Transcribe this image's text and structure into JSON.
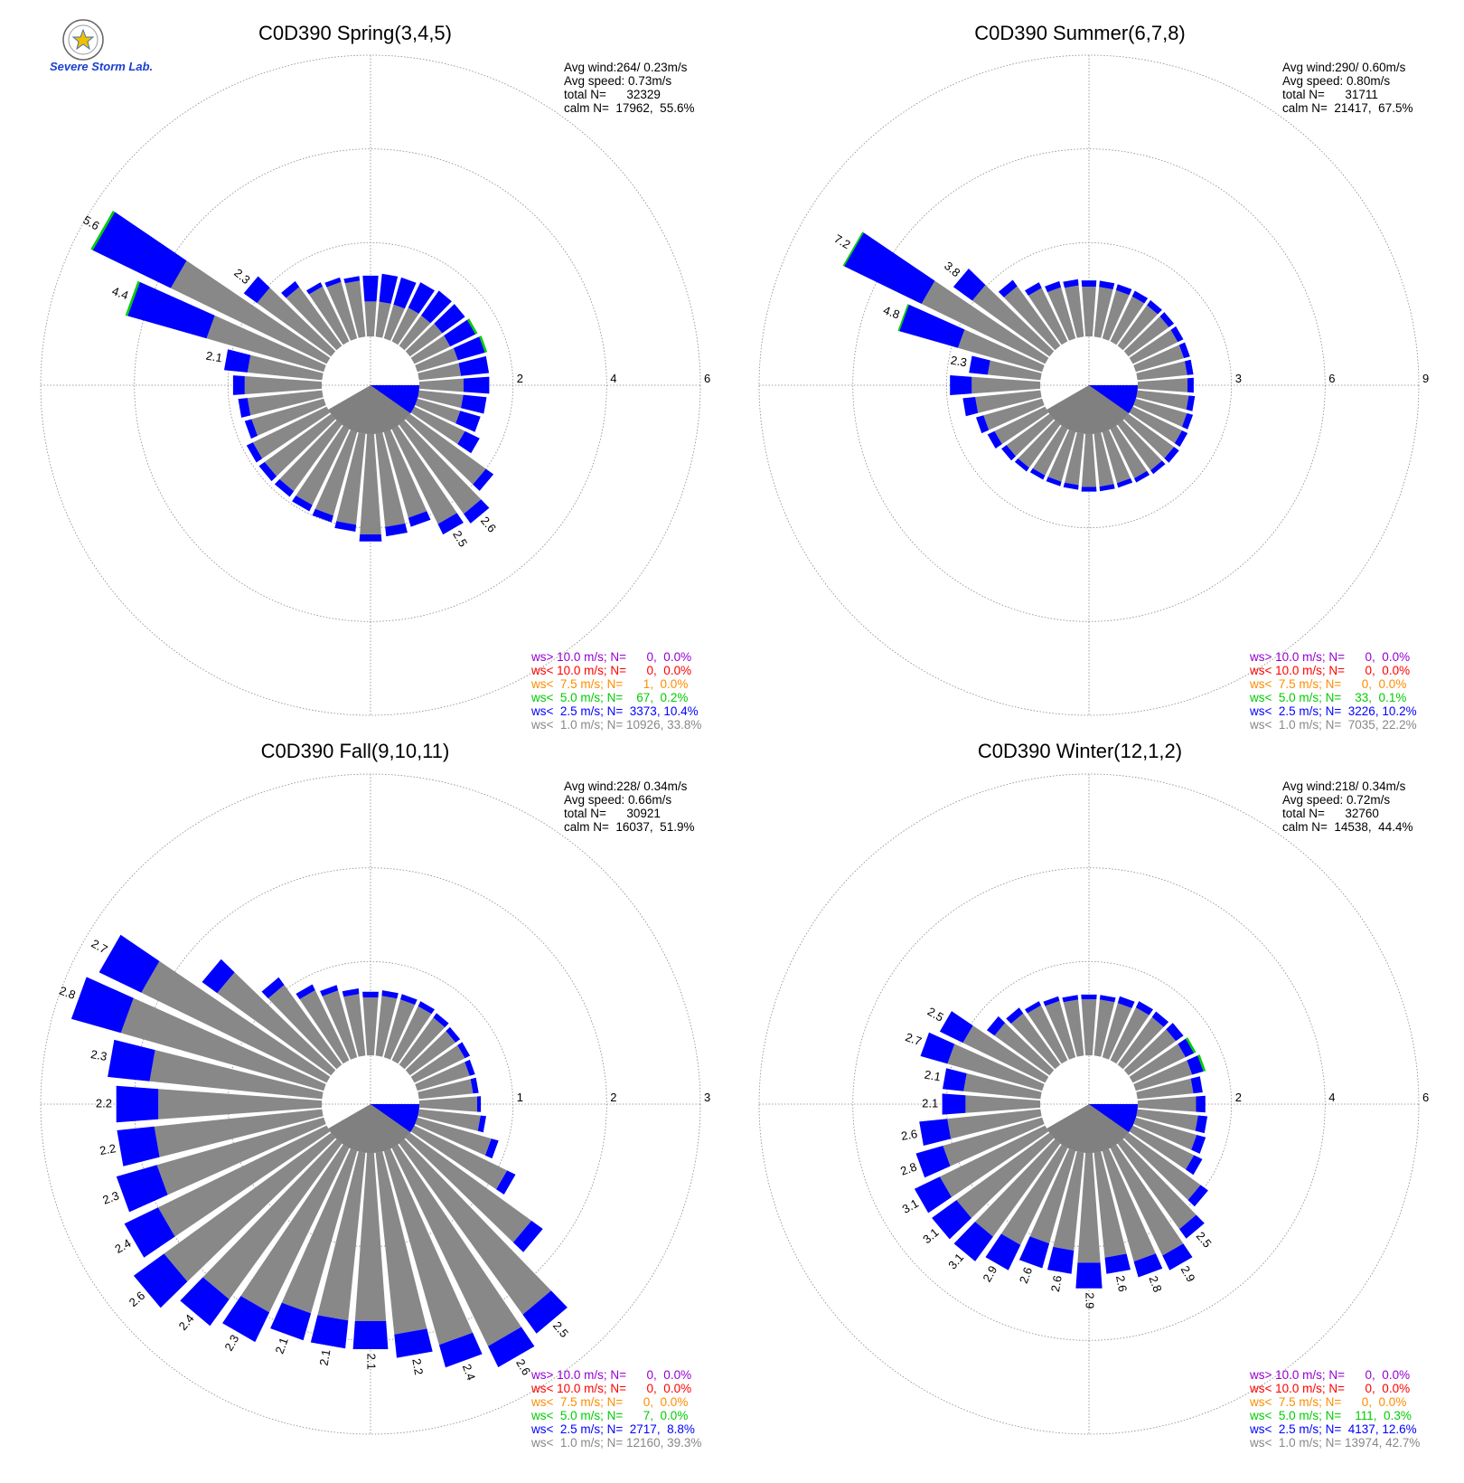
{
  "logo": {
    "text": "Severe Storm Lab."
  },
  "colors": {
    "calm_fill": "#808080",
    "grid": "#888888",
    "lt1": "#888888",
    "lt2_5": "#0000ff",
    "lt5": "#00cc00",
    "lt7_5": "#ff8c00",
    "lt10": "#ff0000",
    "gt10": "#9400d3"
  },
  "chart_data": [
    {
      "type": "polar-bar",
      "title": "C0D390 Spring(3,4,5)",
      "stats": [
        "Avg wind:264/ 0.23m/s",
        "Avg speed: 0.73m/s",
        "total N=      32329",
        "calm N=  17962,  55.6%"
      ],
      "rmax": 6,
      "rticks": [
        2,
        4,
        6
      ],
      "legend": [
        {
          "text": "ws> 10.0 m/s; N=      0,  0.0%",
          "color": "gt10"
        },
        {
          "text": "ws< 10.0 m/s; N=      0,  0.0%",
          "color": "lt10"
        },
        {
          "text": "ws<  7.5 m/s; N=      1,  0.0%",
          "color": "lt7_5"
        },
        {
          "text": "ws<  5.0 m/s; N=    67,  0.2%",
          "color": "lt5"
        },
        {
          "text": "ws<  2.5 m/s; N=  3373, 10.4%",
          "color": "lt2_5"
        },
        {
          "text": "ws<  1.0 m/s; N= 10926, 33.8%",
          "color": "lt1"
        }
      ],
      "directions": [
        {
          "d": 0,
          "v": 1.3,
          "b": 0.75,
          "g": 0
        },
        {
          "d": 10,
          "v": 1.35,
          "b": 0.75,
          "g": 0
        },
        {
          "d": 20,
          "v": 1.35,
          "b": 0.75,
          "g": 0
        },
        {
          "d": 30,
          "v": 1.4,
          "b": 0.8,
          "g": 0
        },
        {
          "d": 40,
          "v": 1.45,
          "b": 0.8,
          "g": 0
        },
        {
          "d": 50,
          "v": 1.45,
          "b": 0.85,
          "g": 0
        },
        {
          "d": 60,
          "v": 1.5,
          "b": 0.85,
          "g": 0.05
        },
        {
          "d": 70,
          "v": 1.55,
          "b": 0.9,
          "g": 0.05
        },
        {
          "d": 80,
          "v": 1.5,
          "b": 0.9,
          "g": 0
        },
        {
          "d": 90,
          "v": 1.5,
          "b": 0.95,
          "g": 0
        },
        {
          "d": 100,
          "v": 1.45,
          "b": 0.95,
          "g": 0
        },
        {
          "d": 110,
          "v": 1.4,
          "b": 0.95,
          "g": 0
        },
        {
          "d": 120,
          "v": 1.55,
          "b": 1.2,
          "g": 0
        },
        {
          "d": 130,
          "v": 2.2,
          "b": 2.0,
          "g": 0
        },
        {
          "d": 140,
          "v": 2.6,
          "b": 2.35,
          "g": 0,
          "label": "2.6"
        },
        {
          "d": 150,
          "v": 2.5,
          "b": 2.25,
          "g": 0,
          "label": "2.5"
        },
        {
          "d": 160,
          "v": 2.1,
          "b": 1.9,
          "g": 0
        },
        {
          "d": 170,
          "v": 2.2,
          "b": 2.0,
          "g": 0
        },
        {
          "d": 180,
          "v": 2.3,
          "b": 2.15,
          "g": 0
        },
        {
          "d": 190,
          "v": 2.1,
          "b": 1.95,
          "g": 0
        },
        {
          "d": 200,
          "v": 2.0,
          "b": 1.85,
          "g": 0
        },
        {
          "d": 210,
          "v": 1.95,
          "b": 1.8,
          "g": 0
        },
        {
          "d": 220,
          "v": 1.9,
          "b": 1.75,
          "g": 0
        },
        {
          "d": 230,
          "v": 1.9,
          "b": 1.75,
          "g": 0
        },
        {
          "d": 240,
          "v": 1.9,
          "b": 1.75,
          "g": 0
        },
        {
          "d": 250,
          "v": 1.75,
          "b": 1.6,
          "g": 0
        },
        {
          "d": 260,
          "v": 1.8,
          "b": 1.6,
          "g": 0
        },
        {
          "d": 270,
          "v": 1.9,
          "b": 1.65,
          "g": 0
        },
        {
          "d": 280,
          "v": 2.1,
          "b": 1.6,
          "g": 0,
          "label": "2.1"
        },
        {
          "d": 290,
          "v": 4.4,
          "b": 2.6,
          "g": 0.05,
          "label": "4.4"
        },
        {
          "d": 300,
          "v": 5.6,
          "b": 3.7,
          "g": 0.05,
          "label": "5.6"
        },
        {
          "d": 310,
          "v": 2.3,
          "b": 1.95,
          "g": 0,
          "label": "2.3"
        },
        {
          "d": 320,
          "v": 1.7,
          "b": 1.55,
          "g": 0
        },
        {
          "d": 330,
          "v": 1.4,
          "b": 1.3,
          "g": 0
        },
        {
          "d": 340,
          "v": 1.35,
          "b": 1.25,
          "g": 0
        },
        {
          "d": 350,
          "v": 1.3,
          "b": 1.2,
          "g": 0
        }
      ]
    },
    {
      "type": "polar-bar",
      "title": "C0D390 Summer(6,7,8)",
      "stats": [
        "Avg wind:290/ 0.60m/s",
        "Avg speed: 0.80m/s",
        "total N=      31711",
        "calm N=  21417,  67.5%"
      ],
      "rmax": 9,
      "rticks": [
        3,
        6,
        9
      ],
      "legend": [
        {
          "text": "ws> 10.0 m/s; N=      0,  0.0%",
          "color": "gt10"
        },
        {
          "text": "ws< 10.0 m/s; N=      0,  0.0%",
          "color": "lt10"
        },
        {
          "text": "ws<  7.5 m/s; N=      0,  0.0%",
          "color": "lt7_5"
        },
        {
          "text": "ws<  5.0 m/s; N=    33,  0.1%",
          "color": "lt5"
        },
        {
          "text": "ws<  2.5 m/s; N=  3226, 10.2%",
          "color": "lt2_5"
        },
        {
          "text": "ws<  1.0 m/s; N=  7035, 22.2%",
          "color": "lt1"
        }
      ],
      "directions": [
        {
          "d": 0,
          "v": 1.8,
          "b": 1.6,
          "g": 0
        },
        {
          "d": 10,
          "v": 1.8,
          "b": 1.6,
          "g": 0
        },
        {
          "d": 20,
          "v": 1.8,
          "b": 1.6,
          "g": 0
        },
        {
          "d": 30,
          "v": 1.8,
          "b": 1.6,
          "g": 0
        },
        {
          "d": 40,
          "v": 1.8,
          "b": 1.6,
          "g": 0
        },
        {
          "d": 50,
          "v": 1.8,
          "b": 1.6,
          "g": 0
        },
        {
          "d": 60,
          "v": 1.8,
          "b": 1.6,
          "g": 0
        },
        {
          "d": 70,
          "v": 1.8,
          "b": 1.6,
          "g": 0
        },
        {
          "d": 80,
          "v": 1.8,
          "b": 1.6,
          "g": 0
        },
        {
          "d": 90,
          "v": 1.8,
          "b": 1.6,
          "g": 0
        },
        {
          "d": 100,
          "v": 1.85,
          "b": 1.65,
          "g": 0
        },
        {
          "d": 110,
          "v": 1.9,
          "b": 1.7,
          "g": 0
        },
        {
          "d": 120,
          "v": 1.95,
          "b": 1.75,
          "g": 0
        },
        {
          "d": 130,
          "v": 2.0,
          "b": 1.8,
          "g": 0
        },
        {
          "d": 140,
          "v": 1.95,
          "b": 1.8,
          "g": 0
        },
        {
          "d": 150,
          "v": 1.9,
          "b": 1.75,
          "g": 0
        },
        {
          "d": 160,
          "v": 1.85,
          "b": 1.7,
          "g": 0
        },
        {
          "d": 170,
          "v": 1.85,
          "b": 1.7,
          "g": 0
        },
        {
          "d": 180,
          "v": 1.85,
          "b": 1.7,
          "g": 0
        },
        {
          "d": 190,
          "v": 1.8,
          "b": 1.65,
          "g": 0
        },
        {
          "d": 200,
          "v": 1.8,
          "b": 1.65,
          "g": 0
        },
        {
          "d": 210,
          "v": 1.8,
          "b": 1.65,
          "g": 0
        },
        {
          "d": 220,
          "v": 1.85,
          "b": 1.7,
          "g": 0
        },
        {
          "d": 230,
          "v": 1.9,
          "b": 1.7,
          "g": 0
        },
        {
          "d": 240,
          "v": 2.05,
          "b": 1.8,
          "g": 0
        },
        {
          "d": 250,
          "v": 2.2,
          "b": 1.95,
          "g": 0
        },
        {
          "d": 260,
          "v": 2.5,
          "b": 2.1,
          "g": 0
        },
        {
          "d": 270,
          "v": 2.9,
          "b": 2.2,
          "g": 0
        },
        {
          "d": 280,
          "v": 2.3,
          "b": 1.7,
          "g": 0,
          "label": "2.3"
        },
        {
          "d": 290,
          "v": 4.8,
          "b": 2.8,
          "g": 0.05,
          "label": "4.8"
        },
        {
          "d": 300,
          "v": 7.2,
          "b": 4.4,
          "g": 0.05,
          "label": "7.2"
        },
        {
          "d": 310,
          "v": 3.8,
          "b": 3.05,
          "g": 0,
          "label": "3.8"
        },
        {
          "d": 320,
          "v": 2.6,
          "b": 2.35,
          "g": 0
        },
        {
          "d": 330,
          "v": 2.1,
          "b": 1.9,
          "g": 0
        },
        {
          "d": 340,
          "v": 1.9,
          "b": 1.7,
          "g": 0
        },
        {
          "d": 350,
          "v": 1.85,
          "b": 1.65,
          "g": 0
        }
      ]
    },
    {
      "type": "polar-bar",
      "title": "C0D390 Fall(9,10,11)",
      "stats": [
        "Avg wind:228/ 0.34m/s",
        "Avg speed: 0.66m/s",
        "total N=      30921",
        "calm N=  16037,  51.9%"
      ],
      "rmax": 3,
      "rticks": [
        1,
        2,
        3
      ],
      "legend": [
        {
          "text": "ws> 10.0 m/s; N=      0,  0.0%",
          "color": "gt10"
        },
        {
          "text": "ws< 10.0 m/s; N=      0,  0.0%",
          "color": "lt10"
        },
        {
          "text": "ws<  7.5 m/s; N=      0,  0.0%",
          "color": "lt7_5"
        },
        {
          "text": "ws<  5.0 m/s; N=      7,  0.0%",
          "color": "lt5"
        },
        {
          "text": "ws<  2.5 m/s; N=  2717,  8.8%",
          "color": "lt2_5"
        },
        {
          "text": "ws<  1.0 m/s; N= 12160, 39.3%",
          "color": "lt1"
        }
      ],
      "directions": [
        {
          "d": 0,
          "v": 0.68,
          "b": 0.62,
          "g": 0
        },
        {
          "d": 10,
          "v": 0.7,
          "b": 0.64,
          "g": 0
        },
        {
          "d": 20,
          "v": 0.7,
          "b": 0.64,
          "g": 0
        },
        {
          "d": 30,
          "v": 0.7,
          "b": 0.64,
          "g": 0
        },
        {
          "d": 40,
          "v": 0.68,
          "b": 0.62,
          "g": 0
        },
        {
          "d": 50,
          "v": 0.66,
          "b": 0.6,
          "g": 0
        },
        {
          "d": 60,
          "v": 0.66,
          "b": 0.6,
          "g": 0
        },
        {
          "d": 70,
          "v": 0.64,
          "b": 0.58,
          "g": 0
        },
        {
          "d": 80,
          "v": 0.64,
          "b": 0.58,
          "g": 0
        },
        {
          "d": 90,
          "v": 0.66,
          "b": 0.62,
          "g": 0
        },
        {
          "d": 100,
          "v": 0.72,
          "b": 0.66,
          "g": 0
        },
        {
          "d": 110,
          "v": 0.9,
          "b": 0.82,
          "g": 0
        },
        {
          "d": 120,
          "v": 1.2,
          "b": 1.1,
          "g": 0
        },
        {
          "d": 130,
          "v": 1.75,
          "b": 1.6,
          "g": 0
        },
        {
          "d": 140,
          "v": 2.5,
          "b": 2.25,
          "g": 0,
          "label": "2.5"
        },
        {
          "d": 150,
          "v": 2.6,
          "b": 2.35,
          "g": 0,
          "label": "2.6"
        },
        {
          "d": 160,
          "v": 2.4,
          "b": 2.15,
          "g": 0,
          "label": "2.4"
        },
        {
          "d": 170,
          "v": 2.2,
          "b": 1.95,
          "g": 0,
          "label": "2.2"
        },
        {
          "d": 180,
          "v": 2.1,
          "b": 1.8,
          "g": 0,
          "label": "2.1"
        },
        {
          "d": 190,
          "v": 2.1,
          "b": 1.8,
          "g": 0,
          "label": "2.1"
        },
        {
          "d": 200,
          "v": 2.1,
          "b": 1.8,
          "g": 0,
          "label": "2.1"
        },
        {
          "d": 210,
          "v": 2.3,
          "b": 1.95,
          "g": 0,
          "label": "2.3"
        },
        {
          "d": 220,
          "v": 2.4,
          "b": 2.05,
          "g": 0,
          "label": "2.4"
        },
        {
          "d": 230,
          "v": 2.6,
          "b": 2.2,
          "g": 0,
          "label": "2.6"
        },
        {
          "d": 240,
          "v": 2.4,
          "b": 2.0,
          "g": 0,
          "label": "2.4"
        },
        {
          "d": 250,
          "v": 2.3,
          "b": 1.85,
          "g": 0,
          "label": "2.3"
        },
        {
          "d": 260,
          "v": 2.2,
          "b": 1.8,
          "g": 0,
          "label": "2.2"
        },
        {
          "d": 270,
          "v": 2.2,
          "b": 1.75,
          "g": 0,
          "label": "2.2"
        },
        {
          "d": 280,
          "v": 2.3,
          "b": 1.85,
          "g": 0,
          "label": "2.3"
        },
        {
          "d": 290,
          "v": 2.8,
          "b": 2.25,
          "g": 0,
          "label": "2.8"
        },
        {
          "d": 300,
          "v": 2.7,
          "b": 2.2,
          "g": 0,
          "label": "2.7"
        },
        {
          "d": 310,
          "v": 1.7,
          "b": 1.5,
          "g": 0
        },
        {
          "d": 320,
          "v": 1.15,
          "b": 1.05,
          "g": 0
        },
        {
          "d": 330,
          "v": 0.9,
          "b": 0.83,
          "g": 0
        },
        {
          "d": 340,
          "v": 0.8,
          "b": 0.74,
          "g": 0
        },
        {
          "d": 350,
          "v": 0.72,
          "b": 0.66,
          "g": 0
        }
      ]
    },
    {
      "type": "polar-bar",
      "title": "C0D390 Winter(12,1,2)",
      "stats": [
        "Avg wind:218/ 0.34m/s",
        "Avg speed: 0.72m/s",
        "total N=      32760",
        "calm N=  14538,  44.4%"
      ],
      "rmax": 6,
      "rticks": [
        2,
        4,
        6
      ],
      "legend": [
        {
          "text": "ws> 10.0 m/s; N=      0,  0.0%",
          "color": "gt10"
        },
        {
          "text": "ws< 10.0 m/s; N=      0,  0.0%",
          "color": "lt10"
        },
        {
          "text": "ws<  7.5 m/s; N=      0,  0.0%",
          "color": "lt7_5"
        },
        {
          "text": "ws<  5.0 m/s; N=    111,  0.3%",
          "color": "lt5"
        },
        {
          "text": "ws<  2.5 m/s; N=  4137, 12.6%",
          "color": "lt2_5"
        },
        {
          "text": "ws<  1.0 m/s; N= 13974, 42.7%",
          "color": "lt1"
        }
      ],
      "directions": [
        {
          "d": 0,
          "v": 1.3,
          "b": 1.2,
          "g": 0
        },
        {
          "d": 10,
          "v": 1.3,
          "b": 1.2,
          "g": 0
        },
        {
          "d": 20,
          "v": 1.35,
          "b": 1.2,
          "g": 0
        },
        {
          "d": 30,
          "v": 1.4,
          "b": 1.25,
          "g": 0
        },
        {
          "d": 40,
          "v": 1.4,
          "b": 1.25,
          "g": 0
        },
        {
          "d": 50,
          "v": 1.45,
          "b": 1.25,
          "g": 0
        },
        {
          "d": 60,
          "v": 1.5,
          "b": 1.25,
          "g": 0.05
        },
        {
          "d": 70,
          "v": 1.55,
          "b": 1.25,
          "g": 0.05
        },
        {
          "d": 80,
          "v": 1.4,
          "b": 1.2,
          "g": 0
        },
        {
          "d": 90,
          "v": 1.45,
          "b": 1.25,
          "g": 0
        },
        {
          "d": 100,
          "v": 1.5,
          "b": 1.3,
          "g": 0
        },
        {
          "d": 110,
          "v": 1.55,
          "b": 1.35,
          "g": 0
        },
        {
          "d": 120,
          "v": 1.65,
          "b": 1.45,
          "g": 0
        },
        {
          "d": 130,
          "v": 2.1,
          "b": 1.9,
          "g": 0
        },
        {
          "d": 140,
          "v": 2.5,
          "b": 2.25,
          "g": 0,
          "label": "2.5"
        },
        {
          "d": 150,
          "v": 2.9,
          "b": 2.55,
          "g": 0,
          "label": "2.9"
        },
        {
          "d": 160,
          "v": 2.8,
          "b": 2.45,
          "g": 0,
          "label": "2.8"
        },
        {
          "d": 170,
          "v": 2.6,
          "b": 2.25,
          "g": 0,
          "label": "2.6"
        },
        {
          "d": 180,
          "v": 2.9,
          "b": 2.35,
          "g": 0,
          "label": "2.9"
        },
        {
          "d": 190,
          "v": 2.6,
          "b": 2.1,
          "g": 0,
          "label": "2.6"
        },
        {
          "d": 200,
          "v": 2.6,
          "b": 2.05,
          "g": 0,
          "label": "2.6"
        },
        {
          "d": 210,
          "v": 2.9,
          "b": 2.3,
          "g": 0,
          "label": "2.9"
        },
        {
          "d": 220,
          "v": 3.1,
          "b": 2.45,
          "g": 0,
          "label": "3.1"
        },
        {
          "d": 230,
          "v": 3.1,
          "b": 2.45,
          "g": 0,
          "label": "3.1"
        },
        {
          "d": 240,
          "v": 3.1,
          "b": 2.5,
          "g": 0,
          "label": "3.1"
        },
        {
          "d": 250,
          "v": 2.8,
          "b": 2.2,
          "g": 0,
          "label": "2.8"
        },
        {
          "d": 260,
          "v": 2.6,
          "b": 2.0,
          "g": 0,
          "label": "2.6"
        },
        {
          "d": 270,
          "v": 2.1,
          "b": 1.6,
          "g": 0,
          "label": "2.1"
        },
        {
          "d": 280,
          "v": 2.1,
          "b": 1.65,
          "g": 0,
          "label": "2.1"
        },
        {
          "d": 290,
          "v": 2.7,
          "b": 2.1,
          "g": 0,
          "label": "2.7"
        },
        {
          "d": 300,
          "v": 2.5,
          "b": 1.95,
          "g": 0,
          "label": "2.5"
        },
        {
          "d": 310,
          "v": 1.65,
          "b": 1.45,
          "g": 0
        },
        {
          "d": 320,
          "v": 1.5,
          "b": 1.35,
          "g": 0
        },
        {
          "d": 330,
          "v": 1.4,
          "b": 1.3,
          "g": 0
        },
        {
          "d": 340,
          "v": 1.35,
          "b": 1.25,
          "g": 0
        },
        {
          "d": 350,
          "v": 1.3,
          "b": 1.2,
          "g": 0
        }
      ]
    }
  ]
}
